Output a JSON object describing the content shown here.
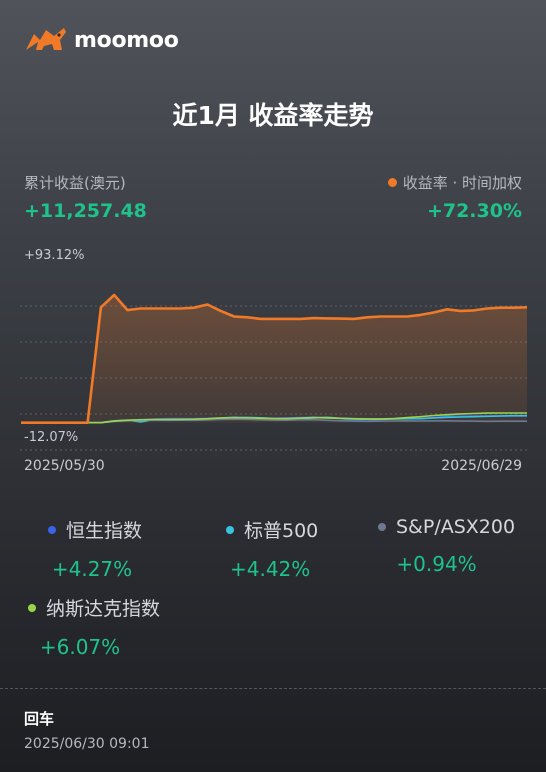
{
  "brand": {
    "name": "moomoo",
    "logo_icon": "bull-icon",
    "logo_color": "#f07a28"
  },
  "title": "近1月 收益率走势",
  "summary": {
    "left_label": "累计收益(澳元)",
    "left_value": "+11,257.48",
    "right_label": "收益率 · 时间加权",
    "right_value": "+72.30%"
  },
  "chart_data": {
    "type": "line",
    "y_max_label": "+93.12%",
    "y_min_label": "-12.07%",
    "ylim": [
      -12.07,
      93.12
    ],
    "x_start": "2025/05/30",
    "x_end": "2025/06/29",
    "series": [
      {
        "name": "收益率 · 时间加权",
        "color": "#f07a28",
        "values": [
          0,
          0,
          0,
          0,
          0,
          0,
          72.3,
          80,
          70.5,
          71.5,
          71.5,
          71.5,
          71.5,
          72,
          74,
          70,
          66.5,
          66,
          65,
          65,
          65,
          65,
          65.5,
          65.3,
          65.2,
          65,
          66,
          66.5,
          66.5,
          66.5,
          67.5,
          69,
          71,
          70,
          70.3,
          71.5,
          72,
          72,
          72.3
        ]
      },
      {
        "name": "恒生指数",
        "color": "#3a63e8",
        "values": [
          0,
          0,
          0,
          0,
          0,
          0,
          0,
          1,
          1.5,
          2,
          2.3,
          2.5,
          2.6,
          2.5,
          2.7,
          3,
          3.5,
          3.4,
          3,
          2.8,
          3,
          3.2,
          3.5,
          3.1,
          2.6,
          1.5,
          1,
          2,
          2.3,
          2.5,
          2.6,
          3.2,
          4,
          4.1,
          4.2,
          4.2,
          4.27,
          4.27,
          4.27
        ]
      },
      {
        "name": "标普500",
        "color": "#3bc3dd",
        "values": [
          0,
          0,
          0,
          0,
          0,
          0,
          0,
          1.2,
          1.6,
          0.5,
          2,
          2.1,
          2.1,
          2,
          2.3,
          2.6,
          3,
          3.2,
          3.1,
          2.6,
          2.4,
          2.6,
          3,
          3.4,
          2.8,
          2.4,
          2.2,
          2.2,
          2.3,
          2.5,
          2.5,
          3,
          3.4,
          3.6,
          3.8,
          4,
          4.2,
          4.4,
          4.42
        ]
      },
      {
        "name": "S&P/ASX200",
        "color": "#6d7992",
        "values": [
          0,
          0,
          0,
          0,
          0,
          0,
          0,
          0.8,
          1.2,
          1.5,
          1.6,
          1.5,
          1.6,
          1.5,
          1.7,
          2,
          2.2,
          2,
          1.8,
          1.6,
          1.6,
          1.8,
          1.9,
          1.5,
          1.2,
          1,
          0.9,
          1,
          1.1,
          1.2,
          1.1,
          1.2,
          1.2,
          1,
          1,
          0.9,
          0.94,
          0.94,
          0.94
        ]
      },
      {
        "name": "纳斯达克指数",
        "color": "#9bd44a",
        "values": [
          0,
          0,
          0,
          0,
          0,
          0,
          0,
          1,
          1.6,
          1.8,
          2,
          2,
          2.1,
          2.2,
          2.5,
          3,
          3.2,
          3,
          2.8,
          2.6,
          2.6,
          2.9,
          3.2,
          3,
          2.8,
          2.5,
          2.4,
          2.4,
          2.6,
          3.2,
          3.8,
          4.5,
          5,
          5.5,
          5.8,
          6,
          6.07,
          6.07,
          6.07
        ]
      }
    ],
    "grid": true
  },
  "legend": [
    {
      "name": "恒生指数",
      "value": "+4.27%",
      "color": "#3a63e8"
    },
    {
      "name": "标普500",
      "value": "+4.42%",
      "color": "#3bc3dd"
    },
    {
      "name": "S&P/ASX200",
      "value": "+0.94%",
      "color": "#6d7992"
    },
    {
      "name": "纳斯达克指数",
      "value": "+6.07%",
      "color": "#9bd44a"
    }
  ],
  "footer": {
    "title": "回车",
    "time": "2025/06/30 09:01"
  }
}
